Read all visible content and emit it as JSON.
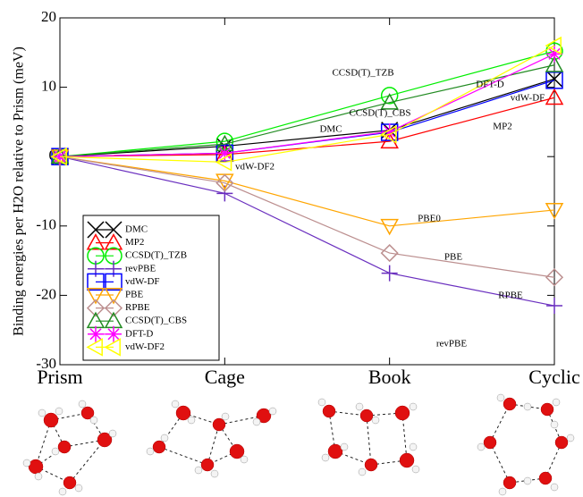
{
  "chart_data": {
    "type": "line",
    "y_label": "Binding energies per H2O relative to Prism (meV)",
    "categories": [
      "Prism",
      "Cage",
      "Book",
      "Cyclic"
    ],
    "ylim": [
      -30,
      20
    ],
    "yticks": [
      -30,
      -20,
      -10,
      0,
      10,
      20
    ],
    "series": [
      {
        "name": "DMC",
        "color": "#000000",
        "values": [
          0,
          1.5,
          3.8,
          11.2
        ]
      },
      {
        "name": "MP2",
        "color": "#ff0000",
        "values": [
          0,
          0.3,
          2.2,
          8.5
        ]
      },
      {
        "name": "CCSD(T)_TZB",
        "color": "#00ee00",
        "values": [
          0,
          2.2,
          8.8,
          15.2
        ]
      },
      {
        "name": "revPBE",
        "color": "#6a2fbf",
        "values": [
          0,
          -5.3,
          -16.8,
          -21.5
        ]
      },
      {
        "name": "vdW-DF",
        "color": "#0000ff",
        "values": [
          0,
          0.5,
          3.5,
          11.0
        ]
      },
      {
        "name": "PBE",
        "color": "#ffa500",
        "values": [
          0,
          -3.5,
          -10.0,
          -7.7
        ]
      },
      {
        "name": "RPBE",
        "color": "#bc8f8f",
        "values": [
          0,
          -3.8,
          -13.9,
          -17.4
        ]
      },
      {
        "name": "CCSD(T)_CBS",
        "color": "#228b22",
        "values": [
          0,
          1.8,
          7.8,
          13.2
        ]
      },
      {
        "name": "DFT-D",
        "color": "#ff00ff",
        "values": [
          0,
          0.5,
          3.6,
          14.8
        ]
      },
      {
        "name": "vdW-DF2",
        "color": "#ffff00",
        "values": [
          0,
          -0.8,
          3.2,
          16.0
        ]
      }
    ],
    "annotations": [
      "CCSD(T)_TZB",
      "DFT-D",
      "vdW-DF",
      "CCSD(T)_CBS",
      "DMC",
      "MP2",
      "vdW-DF2",
      "PBE0",
      "PBE",
      "RPBE",
      "revPBE"
    ]
  }
}
